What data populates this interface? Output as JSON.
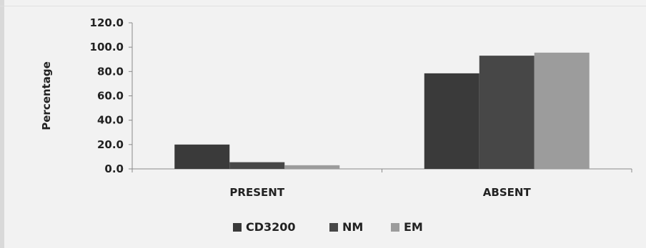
{
  "chart_data": {
    "type": "bar",
    "categories": [
      "PRESENT",
      "ABSENT"
    ],
    "series": [
      {
        "name": "CD3200",
        "values": [
          20.0,
          78.5
        ]
      },
      {
        "name": "NM",
        "values": [
          5.5,
          93.0
        ]
      },
      {
        "name": "EM",
        "values": [
          3.0,
          95.5
        ]
      }
    ],
    "ylabel": "Percentage",
    "xlabel": "",
    "ylim": [
      0,
      120
    ],
    "yticks": [
      "0.0",
      "20.0",
      "40.0",
      "60.0",
      "80.0",
      "100.0",
      "120.0"
    ],
    "legend_position": "bottom",
    "grid": false,
    "colors": [
      "#3a3a3a",
      "#474747",
      "#9c9c9c"
    ]
  }
}
